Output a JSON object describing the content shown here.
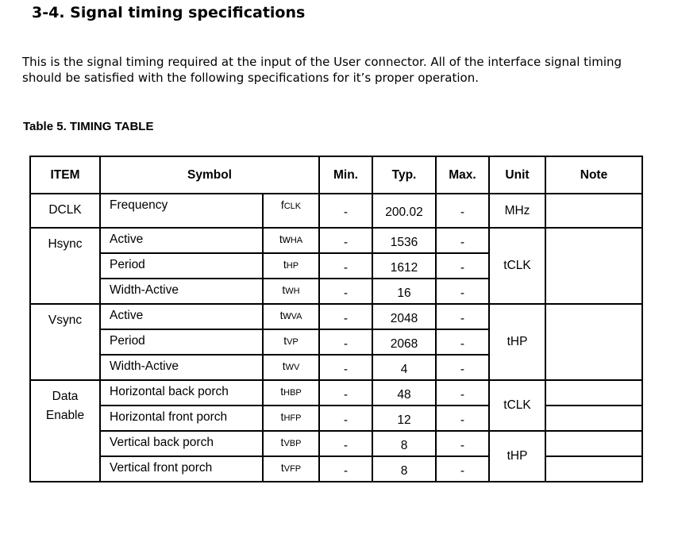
{
  "heading": "3-4. Signal timing specifications",
  "intro": "This is the signal timing required at the input of the User connector.  All of the interface signal timing should be satisfied with the following specifications for it’s proper operation.",
  "caption": "Table 5.  TIMING TABLE",
  "table": {
    "headers": {
      "item": "ITEM",
      "symbol": "Symbol",
      "min": "Min.",
      "typ": "Typ.",
      "max": "Max.",
      "unit": "Unit",
      "note": "Note"
    },
    "groups": {
      "dclk": {
        "item": "DCLK",
        "unit": "MHz"
      },
      "hsync": {
        "item": "Hsync",
        "unit": "tCLK"
      },
      "vsync": {
        "item": "Vsync",
        "unit": "tHP"
      },
      "data": {
        "item_line1": "Data",
        "item_line2": "Enable",
        "unit_h": "tCLK",
        "unit_v": "tHP"
      }
    },
    "rows": [
      {
        "param": "Frequency",
        "sym_main": "f",
        "sym_sub": "CLK",
        "min": "-",
        "typ": "200.02",
        "max": "-"
      },
      {
        "param": "Active",
        "sym_main": "tw",
        "sym_sub": "HA",
        "min": "-",
        "typ": "1536",
        "max": "-"
      },
      {
        "param": "Period",
        "sym_main": "t",
        "sym_sub": "HP",
        "min": "-",
        "typ": "1612",
        "max": "-"
      },
      {
        "param": "Width-Active",
        "sym_main": "t",
        "sym_sub": "WH",
        "min": "-",
        "typ": "16",
        "max": "-"
      },
      {
        "param": "Active",
        "sym_main": "tw",
        "sym_sub": "VA",
        "min": "-",
        "typ": "2048",
        "max": "-"
      },
      {
        "param": "Period",
        "sym_main": "t",
        "sym_sub": "VP",
        "min": "-",
        "typ": "2068",
        "max": "-"
      },
      {
        "param": "Width-Active",
        "sym_main": "t",
        "sym_sub": "WV",
        "min": "-",
        "typ": "4",
        "max": "-"
      },
      {
        "param": "Horizontal back porch",
        "sym_main": "t",
        "sym_sub": "HBP",
        "min": "-",
        "typ": "48",
        "max": "-"
      },
      {
        "param": "Horizontal front porch",
        "sym_main": "t",
        "sym_sub": "HFP",
        "min": "-",
        "typ": "12",
        "max": "-"
      },
      {
        "param": "Vertical back porch",
        "sym_main": "t",
        "sym_sub": "VBP",
        "min": "-",
        "typ": "8",
        "max": "-"
      },
      {
        "param": "Vertical front porch",
        "sym_main": "t",
        "sym_sub": "VFP",
        "min": "-",
        "typ": "8",
        "max": "-"
      }
    ]
  }
}
